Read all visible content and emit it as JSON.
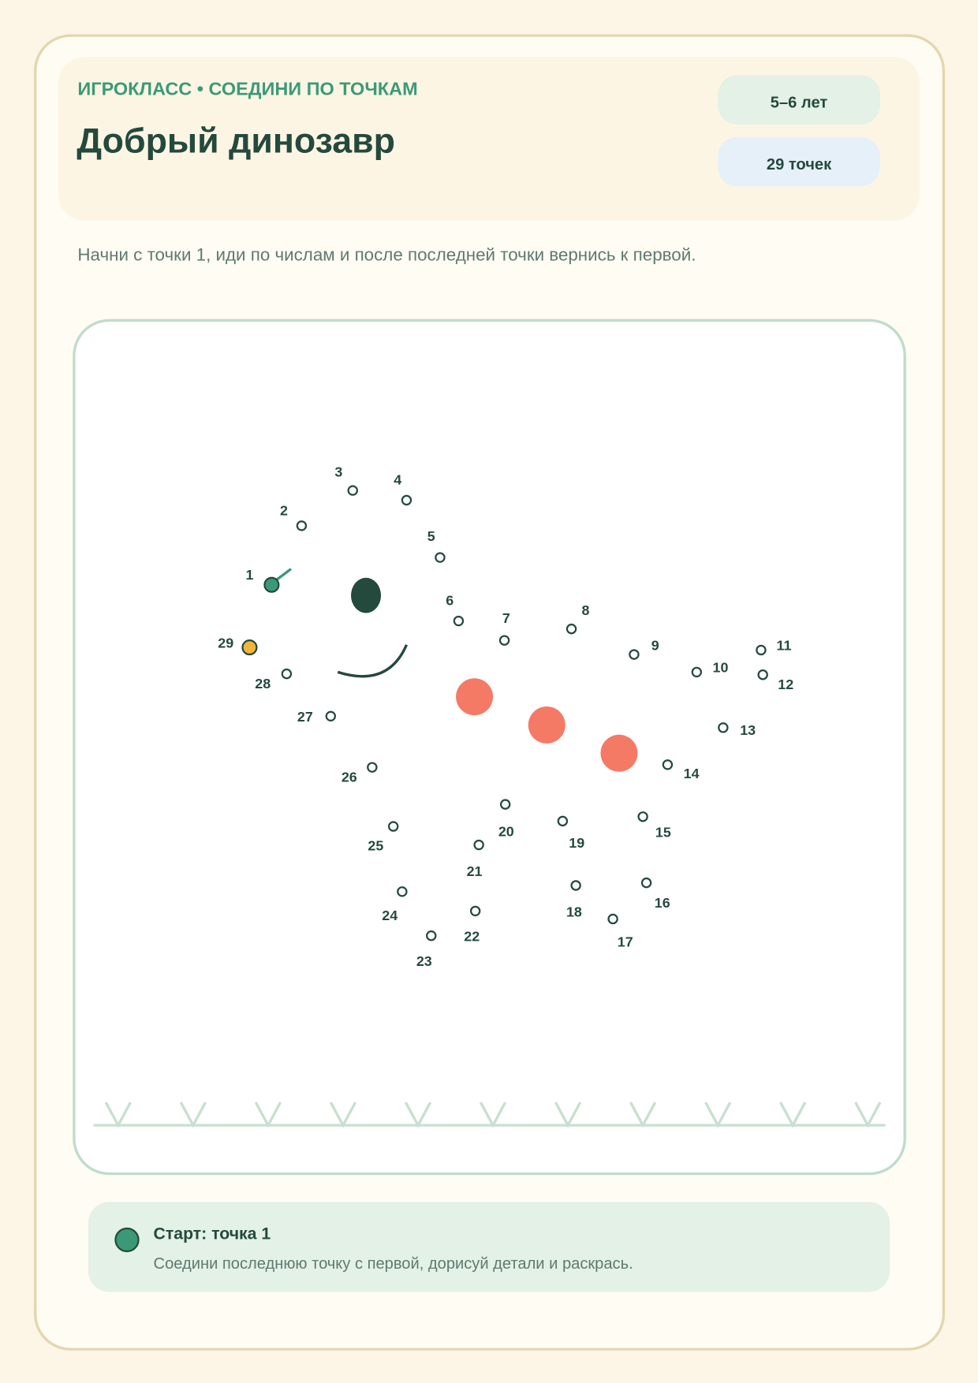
{
  "header": {
    "kicker": "ИГРОКЛАСС • СОЕДИНИ ПО ТОЧКАМ",
    "title": "Добрый динозавр",
    "badges": [
      "5–6 лет",
      "29 точек"
    ]
  },
  "instruction": "Начни с точки 1, иди по числам и после последней точки вернись к первой.",
  "dots": [
    "1",
    "2",
    "3",
    "4",
    "5",
    "6",
    "7",
    "8",
    "9",
    "10",
    "11",
    "12",
    "13",
    "14",
    "15",
    "16",
    "17",
    "18",
    "19",
    "20",
    "21",
    "22",
    "23",
    "24",
    "25",
    "26",
    "27",
    "28",
    "29"
  ],
  "footer": {
    "title": "Старт: точка 1",
    "text": "Соедини последнюю точку с первой, дорисуй детали и раскрась."
  }
}
